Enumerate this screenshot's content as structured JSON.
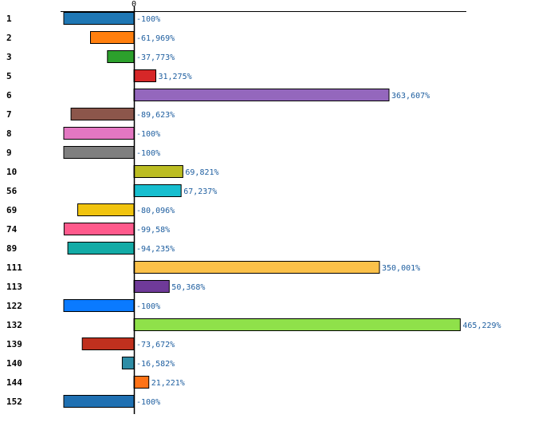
{
  "chart_data": {
    "type": "bar",
    "orientation": "horizontal",
    "title": "",
    "xlabel": "",
    "ylabel": "",
    "grid": false,
    "legend": "none",
    "xlim": [
      -100,
      465.229
    ],
    "zero_tick_label": "0",
    "categories": [
      "1",
      "2",
      "3",
      "5",
      "6",
      "7",
      "8",
      "9",
      "10",
      "56",
      "69",
      "74",
      "89",
      "111",
      "113",
      "122",
      "132",
      "139",
      "140",
      "144",
      "152"
    ],
    "values": [
      -100,
      -61.969,
      -37.773,
      31.275,
      363.607,
      -89.623,
      -100,
      -100,
      69.821,
      67.237,
      -80.096,
      -99.58,
      -94.235,
      350.001,
      50.368,
      -100,
      465.229,
      -73.672,
      -16.582,
      21.221,
      -100
    ],
    "value_labels": [
      "-100%",
      "-61,969%",
      "-37,773%",
      "31,275%",
      "363,607%",
      "-89,623%",
      "-100%",
      "-100%",
      "69,821%",
      "67,237%",
      "-80,096%",
      "-99,58%",
      "-94,235%",
      "350,001%",
      "50,368%",
      "-100%",
      "465,229%",
      "-73,672%",
      "-16,582%",
      "21,221%",
      "-100%"
    ],
    "colors": [
      "#1f77b4",
      "#ff7f0e",
      "#2ca02c",
      "#d62728",
      "#9467bd",
      "#8c564b",
      "#e377c2",
      "#7f7f7f",
      "#bcbd22",
      "#17becf",
      "#f1c40f",
      "#ff5a8c",
      "#13aba6",
      "#fbc14a",
      "#6f3a99",
      "#0a7aff",
      "#8fe14a",
      "#c0301e",
      "#2e8da6",
      "#ff7216",
      "#1f70b2"
    ]
  }
}
